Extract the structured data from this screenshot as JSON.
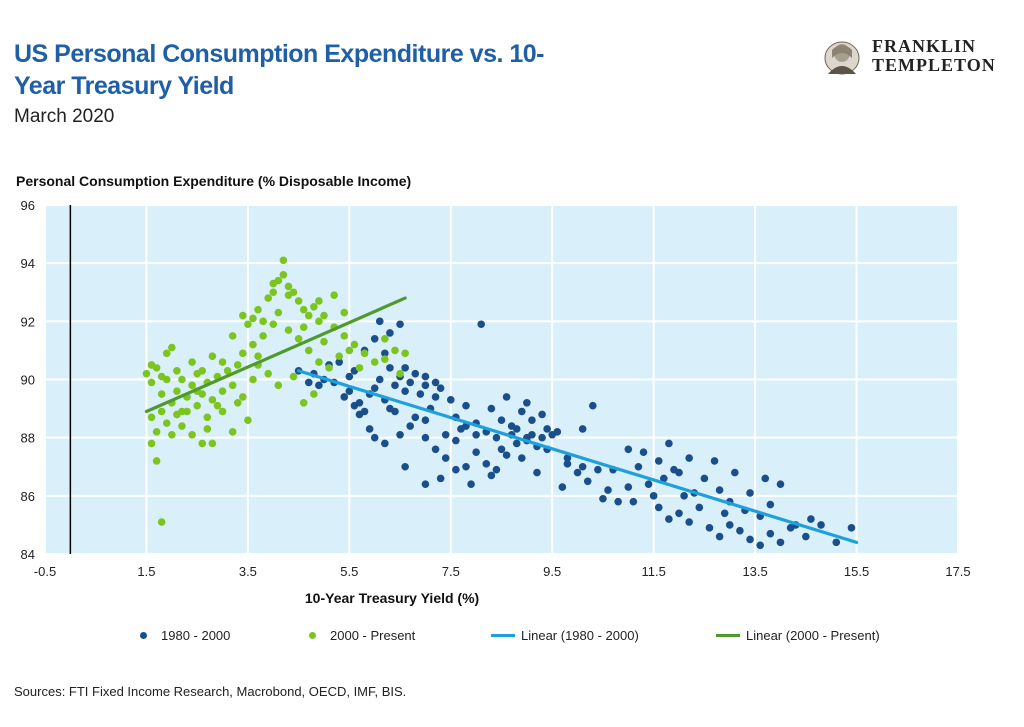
{
  "header": {
    "title": "US Personal Consumption Expenditure vs. 10-Year Treasury Yield",
    "subtitle": "March 2020"
  },
  "logo": {
    "line1": "FRANKLIN",
    "line2": "TEMPLETON",
    "icon": "benjamin-franklin-portrait-icon"
  },
  "footer": {
    "sources": "Sources: FTI Fixed Income Research, Macrobond, OECD, IMF, BIS."
  },
  "legend": {
    "series1": "1980 - 2000",
    "series2": "2000 - Present",
    "trend1": "Linear (1980 - 2000)",
    "trend2": "Linear (2000 - Present)"
  },
  "colors": {
    "series1": "#1b4f8c",
    "series2": "#7cc520",
    "trend1": "#1ea0dc",
    "trend2": "#4f9a2c",
    "plot_background": "#d9eff9",
    "title": "#1f5fa8"
  },
  "chart_data": {
    "type": "scatter",
    "title": "US Personal Consumption Expenditure vs. 10-Year Treasury Yield",
    "subtitle": "March 2020",
    "xlabel": "10-Year Treasury Yield (%)",
    "ylabel": "Personal Consumption Expenditure (% Disposable Income)",
    "xlim": [
      -0.5,
      17.5
    ],
    "ylim": [
      84,
      96
    ],
    "xticks": [
      -0.5,
      1.5,
      3.5,
      5.5,
      7.5,
      9.5,
      11.5,
      13.5,
      15.5,
      17.5
    ],
    "xtick_labels": [
      "-0.5",
      "1.5",
      "3.5",
      "5.5",
      "7.5",
      "9.5",
      "11.5",
      "13.5",
      "15.5",
      "17.5"
    ],
    "yticks": [
      84,
      86,
      88,
      90,
      92,
      94,
      96
    ],
    "ytick_labels": [
      "84",
      "86",
      "88",
      "90",
      "92",
      "94",
      "96"
    ],
    "vertical_reference_line_x": 0,
    "grid": true,
    "legend_position": "bottom",
    "series": [
      {
        "name": "1980 - 2000",
        "color": "#1b4f8c",
        "points": [
          [
            4.5,
            90.3
          ],
          [
            4.7,
            89.9
          ],
          [
            4.9,
            89.8
          ],
          [
            5.1,
            90.5
          ],
          [
            5.3,
            90.6
          ],
          [
            5.4,
            89.4
          ],
          [
            5.5,
            89.6
          ],
          [
            5.6,
            89.1
          ],
          [
            5.7,
            89.2
          ],
          [
            5.8,
            88.9
          ],
          [
            5.9,
            89.5
          ],
          [
            6.0,
            89.7
          ],
          [
            6.1,
            90.0
          ],
          [
            6.2,
            89.3
          ],
          [
            6.3,
            90.4
          ],
          [
            6.4,
            89.8
          ],
          [
            6.5,
            90.1
          ],
          [
            6.6,
            89.6
          ],
          [
            6.7,
            89.9
          ],
          [
            6.8,
            90.2
          ],
          [
            6.9,
            89.5
          ],
          [
            7.0,
            89.8
          ],
          [
            7.1,
            89.0
          ],
          [
            7.2,
            89.4
          ],
          [
            7.3,
            89.7
          ],
          [
            7.5,
            89.3
          ],
          [
            7.6,
            88.7
          ],
          [
            7.8,
            88.4
          ],
          [
            5.8,
            91.0
          ],
          [
            6.0,
            91.4
          ],
          [
            6.1,
            92.0
          ],
          [
            6.3,
            91.6
          ],
          [
            6.5,
            91.9
          ],
          [
            6.2,
            90.9
          ],
          [
            5.6,
            90.3
          ],
          [
            5.2,
            89.9
          ],
          [
            5.0,
            90.0
          ],
          [
            6.0,
            88.0
          ],
          [
            6.2,
            87.8
          ],
          [
            6.5,
            88.1
          ],
          [
            6.8,
            88.7
          ],
          [
            7.0,
            88.0
          ],
          [
            7.2,
            87.6
          ],
          [
            7.4,
            87.3
          ],
          [
            7.6,
            87.9
          ],
          [
            7.8,
            87.0
          ],
          [
            8.0,
            87.5
          ],
          [
            8.2,
            87.1
          ],
          [
            8.4,
            86.9
          ],
          [
            8.6,
            87.4
          ],
          [
            8.8,
            87.8
          ],
          [
            9.0,
            88.0
          ],
          [
            9.2,
            87.7
          ],
          [
            9.4,
            88.3
          ],
          [
            9.5,
            88.1
          ],
          [
            7.8,
            89.1
          ],
          [
            8.0,
            88.5
          ],
          [
            8.2,
            88.2
          ],
          [
            8.4,
            88.0
          ],
          [
            8.5,
            88.6
          ],
          [
            8.7,
            88.4
          ],
          [
            8.9,
            88.9
          ],
          [
            9.1,
            88.6
          ],
          [
            9.3,
            88.8
          ],
          [
            9.6,
            88.2
          ],
          [
            8.1,
            91.9
          ],
          [
            8.6,
            89.4
          ],
          [
            9.0,
            89.2
          ],
          [
            7.3,
            86.6
          ],
          [
            7.6,
            86.9
          ],
          [
            7.9,
            86.4
          ],
          [
            8.3,
            86.7
          ],
          [
            7.0,
            86.4
          ],
          [
            6.6,
            87.0
          ],
          [
            9.8,
            87.3
          ],
          [
            10.0,
            86.8
          ],
          [
            10.2,
            86.5
          ],
          [
            10.4,
            86.9
          ],
          [
            10.6,
            86.2
          ],
          [
            10.8,
            85.8
          ],
          [
            11.0,
            86.3
          ],
          [
            11.2,
            87.0
          ],
          [
            11.4,
            86.4
          ],
          [
            11.6,
            85.6
          ],
          [
            11.8,
            85.2
          ],
          [
            12.0,
            85.4
          ],
          [
            12.2,
            85.1
          ],
          [
            12.4,
            85.6
          ],
          [
            12.6,
            84.9
          ],
          [
            12.8,
            84.6
          ],
          [
            13.0,
            85.0
          ],
          [
            13.2,
            84.8
          ],
          [
            13.4,
            84.5
          ],
          [
            13.6,
            84.3
          ],
          [
            13.8,
            84.7
          ],
          [
            14.0,
            84.4
          ],
          [
            14.2,
            84.9
          ],
          [
            14.5,
            84.6
          ],
          [
            14.8,
            85.0
          ],
          [
            15.1,
            84.4
          ],
          [
            11.0,
            87.6
          ],
          [
            11.3,
            87.5
          ],
          [
            11.6,
            87.2
          ],
          [
            11.9,
            86.9
          ],
          [
            12.2,
            87.3
          ],
          [
            12.5,
            86.6
          ],
          [
            12.8,
            86.2
          ],
          [
            13.1,
            86.8
          ],
          [
            13.4,
            86.1
          ],
          [
            13.7,
            86.6
          ],
          [
            14.0,
            86.4
          ],
          [
            10.1,
            88.3
          ],
          [
            10.3,
            89.1
          ],
          [
            9.7,
            86.3
          ],
          [
            10.5,
            85.9
          ],
          [
            11.8,
            87.8
          ],
          [
            12.7,
            87.2
          ],
          [
            13.3,
            85.5
          ],
          [
            14.3,
            85.0
          ],
          [
            15.4,
            84.9
          ],
          [
            11.5,
            86.0
          ],
          [
            12.0,
            86.8
          ],
          [
            12.9,
            85.4
          ],
          [
            13.6,
            85.3
          ],
          [
            14.6,
            85.2
          ],
          [
            9.2,
            86.8
          ],
          [
            8.9,
            87.3
          ],
          [
            9.4,
            87.6
          ],
          [
            10.7,
            86.9
          ],
          [
            11.1,
            85.8
          ],
          [
            12.3,
            86.1
          ],
          [
            13.8,
            85.7
          ],
          [
            7.0,
            88.6
          ],
          [
            6.7,
            88.4
          ],
          [
            6.4,
            88.9
          ],
          [
            5.9,
            88.3
          ],
          [
            5.7,
            88.8
          ],
          [
            7.4,
            88.1
          ],
          [
            7.2,
            89.9
          ],
          [
            7.0,
            90.1
          ],
          [
            6.6,
            90.4
          ],
          [
            8.3,
            89.0
          ],
          [
            8.7,
            88.1
          ],
          [
            9.0,
            87.9
          ],
          [
            9.8,
            87.1
          ],
          [
            10.1,
            87.0
          ],
          [
            11.7,
            86.6
          ],
          [
            12.1,
            86.0
          ],
          [
            13.0,
            85.8
          ],
          [
            8.0,
            88.1
          ],
          [
            7.7,
            88.3
          ],
          [
            8.5,
            87.6
          ],
          [
            8.8,
            88.3
          ],
          [
            9.1,
            88.1
          ],
          [
            9.3,
            88.0
          ],
          [
            6.3,
            89.0
          ],
          [
            5.5,
            90.1
          ],
          [
            4.8,
            90.2
          ]
        ]
      },
      {
        "name": "2000 - Present",
        "color": "#7cc520",
        "points": [
          [
            1.5,
            90.2
          ],
          [
            1.6,
            89.9
          ],
          [
            1.7,
            90.4
          ],
          [
            1.8,
            89.5
          ],
          [
            1.9,
            90.0
          ],
          [
            2.0,
            89.2
          ],
          [
            2.1,
            89.6
          ],
          [
            2.2,
            88.9
          ],
          [
            2.3,
            89.4
          ],
          [
            2.4,
            89.8
          ],
          [
            2.5,
            89.1
          ],
          [
            2.6,
            89.5
          ],
          [
            2.7,
            89.9
          ],
          [
            2.8,
            89.3
          ],
          [
            2.9,
            90.1
          ],
          [
            3.0,
            89.6
          ],
          [
            3.1,
            90.3
          ],
          [
            3.2,
            89.8
          ],
          [
            3.3,
            90.5
          ],
          [
            1.6,
            88.7
          ],
          [
            1.7,
            88.2
          ],
          [
            1.8,
            88.9
          ],
          [
            1.9,
            88.5
          ],
          [
            2.0,
            88.1
          ],
          [
            2.1,
            88.8
          ],
          [
            2.2,
            88.4
          ],
          [
            2.3,
            88.9
          ],
          [
            1.6,
            87.8
          ],
          [
            1.7,
            87.2
          ],
          [
            1.8,
            85.1
          ],
          [
            2.6,
            87.8
          ],
          [
            2.8,
            87.8
          ],
          [
            3.2,
            88.2
          ],
          [
            2.7,
            88.3
          ],
          [
            1.6,
            90.5
          ],
          [
            1.9,
            90.9
          ],
          [
            2.0,
            91.1
          ],
          [
            2.4,
            90.6
          ],
          [
            2.6,
            90.3
          ],
          [
            2.8,
            90.8
          ],
          [
            3.0,
            90.6
          ],
          [
            3.4,
            90.9
          ],
          [
            3.6,
            91.2
          ],
          [
            3.8,
            91.5
          ],
          [
            3.5,
            91.9
          ],
          [
            3.6,
            92.1
          ],
          [
            3.7,
            92.4
          ],
          [
            3.9,
            92.8
          ],
          [
            4.0,
            93.0
          ],
          [
            4.1,
            93.4
          ],
          [
            4.2,
            93.6
          ],
          [
            4.3,
            93.2
          ],
          [
            4.4,
            93.0
          ],
          [
            4.5,
            92.7
          ],
          [
            4.6,
            92.4
          ],
          [
            4.7,
            92.2
          ],
          [
            4.8,
            92.5
          ],
          [
            4.9,
            92.0
          ],
          [
            5.0,
            92.2
          ],
          [
            5.2,
            91.8
          ],
          [
            5.4,
            91.5
          ],
          [
            5.6,
            91.2
          ],
          [
            5.8,
            90.9
          ],
          [
            6.0,
            90.6
          ],
          [
            6.2,
            90.7
          ],
          [
            6.4,
            91.0
          ],
          [
            6.5,
            90.2
          ],
          [
            4.0,
            91.9
          ],
          [
            4.1,
            92.3
          ],
          [
            4.3,
            91.7
          ],
          [
            4.5,
            91.4
          ],
          [
            4.7,
            91.0
          ],
          [
            4.9,
            90.6
          ],
          [
            5.1,
            90.4
          ],
          [
            5.3,
            90.8
          ],
          [
            3.7,
            90.5
          ],
          [
            3.9,
            90.2
          ],
          [
            4.1,
            89.8
          ],
          [
            4.4,
            90.1
          ],
          [
            4.8,
            89.5
          ],
          [
            3.5,
            88.6
          ],
          [
            3.3,
            89.2
          ],
          [
            4.2,
            94.1
          ],
          [
            4.0,
            93.3
          ],
          [
            3.8,
            92.0
          ],
          [
            4.3,
            92.9
          ],
          [
            4.6,
            91.8
          ],
          [
            5.0,
            91.3
          ],
          [
            5.5,
            91.0
          ],
          [
            5.7,
            90.4
          ],
          [
            6.2,
            91.4
          ],
          [
            6.6,
            90.9
          ],
          [
            3.0,
            88.9
          ],
          [
            2.5,
            90.2
          ],
          [
            2.2,
            90.0
          ],
          [
            1.8,
            90.1
          ],
          [
            2.9,
            89.1
          ],
          [
            3.4,
            89.4
          ],
          [
            3.6,
            90.0
          ],
          [
            4.6,
            89.2
          ],
          [
            5.2,
            92.9
          ],
          [
            5.4,
            92.3
          ],
          [
            4.9,
            92.7
          ],
          [
            3.2,
            91.5
          ],
          [
            3.4,
            92.2
          ],
          [
            2.4,
            88.1
          ],
          [
            3.7,
            90.8
          ],
          [
            2.1,
            90.3
          ],
          [
            2.5,
            89.6
          ],
          [
            2.7,
            88.7
          ]
        ]
      }
    ],
    "trendlines": [
      {
        "name": "Linear (1980 - 2000)",
        "color": "#1ea0dc",
        "x": [
          4.5,
          15.5
        ],
        "y": [
          90.3,
          84.4
        ]
      },
      {
        "name": "Linear (2000 - Present)",
        "color": "#4f9a2c",
        "x": [
          1.5,
          6.6
        ],
        "y": [
          88.9,
          92.8
        ]
      }
    ]
  }
}
